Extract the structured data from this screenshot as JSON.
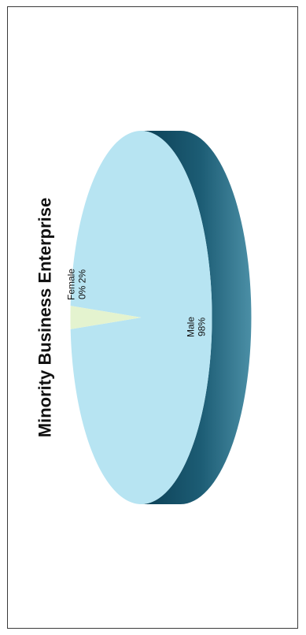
{
  "chart_data": {
    "type": "pie",
    "title": "Minority Business Enterprise",
    "categories": [
      "Male",
      "Female"
    ],
    "values": [
      98,
      2
    ],
    "data_labels": [
      {
        "category": "Male",
        "label": "Male",
        "value_label": "98%"
      },
      {
        "category": "Female",
        "label": "Female",
        "value_label": "2%",
        "extra_label": "0%"
      }
    ],
    "colors": {
      "male_top": "#b7e4f2",
      "male_side_dark": "#0b3f55",
      "male_side_light": "#4b8fa6",
      "female": "#e4f3cf"
    },
    "orientation": "rotated-90-ccw",
    "legend": "none"
  }
}
